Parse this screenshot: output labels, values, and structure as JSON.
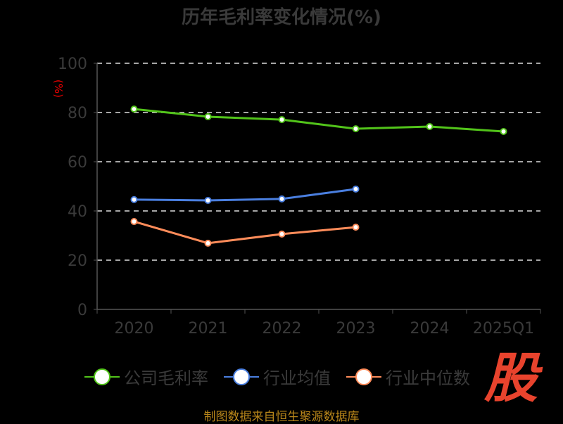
{
  "chart_data": {
    "type": "line",
    "title": "历年毛利率变化情况(%)",
    "ylabel": "(%)",
    "xlabel": "",
    "categories": [
      "2020",
      "2021",
      "2022",
      "2023",
      "2024",
      "2025Q1"
    ],
    "ylim": [
      0,
      100
    ],
    "yticks": [
      0,
      20,
      40,
      60,
      80,
      100
    ],
    "grid": true,
    "legend_position": "bottom",
    "series": [
      {
        "name": "公司毛利率",
        "color": "#52c41a",
        "values": [
          81.4,
          78.3,
          77.1,
          73.4,
          74.3,
          72.3
        ]
      },
      {
        "name": "行业均值",
        "color": "#4a7fe0",
        "values": [
          44.6,
          44.3,
          44.9,
          48.9,
          null,
          null
        ]
      },
      {
        "name": "行业中位数",
        "color": "#ff8c5a",
        "values": [
          35.7,
          26.9,
          30.6,
          33.4,
          null,
          null
        ]
      }
    ]
  },
  "footer": {
    "source": "制图数据来自恒生聚源数据库",
    "logo": "股"
  }
}
